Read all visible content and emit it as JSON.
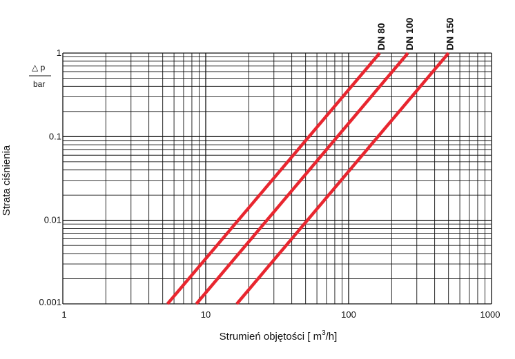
{
  "chart_data": {
    "type": "line",
    "x_scale": "log",
    "y_scale": "log",
    "xlim": [
      1,
      1000
    ],
    "ylim": [
      0.001,
      1
    ],
    "grid": true,
    "x_ticks": [
      "1",
      "10",
      "100",
      "1000"
    ],
    "y_ticks": [
      "0.001",
      "0.01",
      "0.1",
      "1"
    ],
    "xlabel_main": "Strumień objętości [ m",
    "xlabel_sup": "3",
    "xlabel_end": "/h]",
    "ylabel": "Strata ciśnienia",
    "y_unit_symbol": "△ p",
    "y_unit_denominator": "bar",
    "series": [
      {
        "name": "DN 80",
        "color": "#e8262f",
        "x": [
          5.4,
          165
        ],
        "y": [
          0.001,
          1
        ]
      },
      {
        "name": "DN 100",
        "color": "#e8262f",
        "x": [
          8.6,
          260
        ],
        "y": [
          0.001,
          1
        ]
      },
      {
        "name": "DN 150",
        "color": "#e8262f",
        "x": [
          16.5,
          500
        ],
        "y": [
          0.001,
          1
        ]
      }
    ]
  }
}
